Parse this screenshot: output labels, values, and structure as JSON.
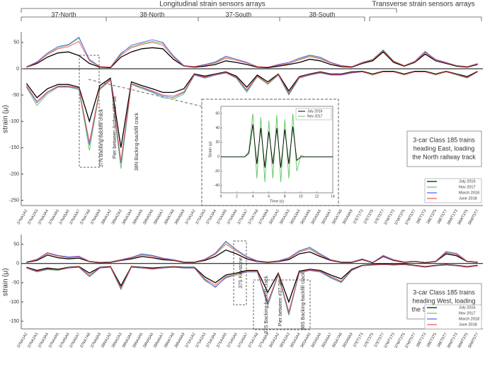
{
  "headers": {
    "longitudinal": "Longitudinal strain sensors arrays",
    "transverse": "Transverse strain sensors arrays",
    "groups": [
      "37-North",
      "38-North",
      "37-South",
      "38-South"
    ]
  },
  "chart_data": [
    {
      "type": "line",
      "ylabel": "strain (μ)",
      "ylim": [
        -260,
        70
      ],
      "yticks": [
        50,
        0,
        -50,
        -100,
        -150,
        -200,
        -250
      ],
      "categories": [
        "37NA1A2",
        "37NA2A3",
        "37NA3A4",
        "37NA4A5",
        "37NA5A6",
        "37NA6A7",
        "37NA7A8",
        "37NA8A9",
        "38NA1A2",
        "38NA2A3",
        "38NA3A4",
        "38NA4A5",
        "38NA5A6",
        "38NA6A7",
        "38NA7A8",
        "38NA8A9",
        "37SA1A2",
        "37SA2A3",
        "37SA3A4",
        "37SA4A5",
        "37SA5A6",
        "37SA6A7",
        "37SA7A8",
        "37SA8A9",
        "38SA1A2",
        "38SA2A3",
        "38SA3A4",
        "38SA4A5",
        "38SA5A6",
        "38SA6A7",
        "38SA7A8",
        "38SA8A9",
        "37ET1T3",
        "37ET3T5",
        "37ET5T7",
        "37WT1T3",
        "37WT3T5",
        "37WT5T7",
        "38ET1T3",
        "38ET3T5",
        "38ET5T7",
        "38WT1T3",
        "38WT3T5",
        "38WT5T7"
      ],
      "series": [
        {
          "name": "July 2016",
          "color": "#000000",
          "max": [
            3,
            10,
            22,
            30,
            32,
            25,
            10,
            3,
            2,
            22,
            32,
            38,
            40,
            38,
            18,
            5,
            3,
            5,
            8,
            15,
            12,
            8,
            3,
            2,
            5,
            8,
            12,
            18,
            15,
            8,
            4,
            3,
            10,
            15,
            32,
            12,
            5,
            12,
            28,
            15,
            10,
            5,
            3,
            8
          ],
          "min": [
            -28,
            -55,
            -38,
            -30,
            -30,
            -35,
            -100,
            -32,
            -18,
            -150,
            -25,
            -32,
            -38,
            -45,
            -45,
            -38,
            -10,
            -14,
            -10,
            -6,
            -14,
            -35,
            -12,
            -25,
            -10,
            -42,
            -15,
            -10,
            -6,
            -10,
            -10,
            -6,
            -5,
            -10,
            -5,
            -5,
            -10,
            -5,
            -5,
            -10,
            -5,
            -10,
            -15,
            -5
          ]
        },
        {
          "name": "Nov 2017",
          "color": "#5cc85c",
          "max": [
            4,
            12,
            28,
            40,
            45,
            58,
            18,
            4,
            3,
            30,
            42,
            48,
            52,
            48,
            25,
            6,
            4,
            7,
            12,
            22,
            18,
            12,
            4,
            3,
            7,
            10,
            18,
            25,
            20,
            12,
            6,
            4,
            12,
            18,
            36,
            15,
            6,
            14,
            32,
            18,
            12,
            6,
            4,
            10
          ],
          "min": [
            -35,
            -70,
            -48,
            -35,
            -35,
            -40,
            -155,
            -40,
            -22,
            -190,
            -30,
            -38,
            -45,
            -55,
            -58,
            -48,
            -12,
            -18,
            -12,
            -8,
            -18,
            -45,
            -15,
            -30,
            -12,
            -50,
            -18,
            -12,
            -8,
            -12,
            -12,
            -8,
            -6,
            -12,
            -6,
            -6,
            -12,
            -6,
            -6,
            -12,
            -6,
            -12,
            -18,
            -6
          ]
        },
        {
          "name": "March 2018",
          "color": "#5a5af0",
          "max": [
            4,
            13,
            30,
            42,
            46,
            60,
            17,
            4,
            3,
            28,
            45,
            50,
            55,
            50,
            24,
            6,
            4,
            8,
            13,
            24,
            18,
            12,
            4,
            3,
            8,
            12,
            20,
            26,
            22,
            12,
            6,
            4,
            12,
            17,
            35,
            14,
            6,
            14,
            33,
            17,
            12,
            6,
            4,
            10
          ],
          "min": [
            -33,
            -65,
            -45,
            -34,
            -34,
            -38,
            -145,
            -38,
            -21,
            -180,
            -29,
            -36,
            -44,
            -52,
            -55,
            -45,
            -12,
            -17,
            -12,
            -8,
            -17,
            -42,
            -14,
            -28,
            -12,
            -48,
            -17,
            -12,
            -8,
            -12,
            -12,
            -8,
            -6,
            -11,
            -6,
            -6,
            -11,
            -6,
            -6,
            -11,
            -6,
            -11,
            -17,
            -6
          ]
        },
        {
          "name": "June 2018",
          "color": "#f05050",
          "max": [
            3,
            12,
            27,
            38,
            42,
            52,
            15,
            4,
            3,
            26,
            40,
            46,
            50,
            45,
            22,
            5,
            4,
            7,
            11,
            20,
            16,
            11,
            4,
            3,
            7,
            10,
            17,
            23,
            19,
            11,
            5,
            4,
            11,
            17,
            34,
            14,
            6,
            13,
            31,
            16,
            11,
            6,
            4,
            9
          ],
          "min": [
            -32,
            -62,
            -44,
            -33,
            -33,
            -37,
            -140,
            -37,
            -20,
            -175,
            -28,
            -35,
            -42,
            -50,
            -52,
            -44,
            -11,
            -16,
            -11,
            -7,
            -16,
            -40,
            -14,
            -28,
            -11,
            -46,
            -16,
            -11,
            -7,
            -11,
            -11,
            -7,
            -6,
            -11,
            -6,
            -6,
            -11,
            -6,
            -6,
            -11,
            -6,
            -11,
            -17,
            -6
          ]
        }
      ],
      "annotations": [
        "37N Backing-backfill crack",
        "Pier between Arches #37-38",
        "38N Backing-backfill crack"
      ],
      "box_text": [
        "3-car Class 185 trains",
        "heading East, loading",
        "the North railway track"
      ]
    },
    {
      "type": "line",
      "ylabel": "strain (μ)",
      "ylim": [
        -170,
        75
      ],
      "yticks": [
        50,
        0,
        -50,
        -100,
        -150
      ],
      "categories": [
        "37NA1A2",
        "37NA2A3",
        "37NA3A4",
        "37NA4A5",
        "37NA5A6",
        "37NA6A7",
        "37NA7A8",
        "37NA8A9",
        "38NA1A2",
        "38NA2A3",
        "38NA3A4",
        "38NA4A5",
        "38NA5A6",
        "38NA6A7",
        "38NA7A8",
        "38NA8A9",
        "37SA1A2",
        "37SA2A3",
        "37SA3A4",
        "37SA4A5",
        "37SA5A6",
        "37SA6A7",
        "37SA7A8",
        "37SA8A9",
        "38SA1A2",
        "38SA2A3",
        "38SA3A4",
        "38SA4A5",
        "38SA5A6",
        "38SA6A7",
        "38SA7A8",
        "38SA8A9",
        "37ET1T3",
        "37ET3T5",
        "37ET5T7",
        "37WT1T3",
        "37WT3T5",
        "37WT5T7",
        "38ET1T3",
        "38ET3T5",
        "38ET5T7",
        "38WT1T3",
        "38WT3T5",
        "38WT5T7"
      ],
      "series": [
        {
          "name": "July 2016",
          "color": "#000000",
          "max": [
            3,
            8,
            22,
            15,
            12,
            14,
            5,
            2,
            3,
            8,
            12,
            18,
            15,
            10,
            8,
            3,
            3,
            8,
            18,
            35,
            25,
            12,
            5,
            3,
            5,
            10,
            25,
            30,
            18,
            8,
            3,
            3,
            10,
            2,
            18,
            8,
            3,
            5,
            2,
            5,
            25,
            20,
            5,
            3
          ],
          "min": [
            -10,
            -18,
            -12,
            -15,
            -10,
            -8,
            -25,
            -10,
            -8,
            -58,
            -8,
            -10,
            -12,
            -10,
            -8,
            -10,
            -10,
            -35,
            -50,
            -30,
            -25,
            -18,
            -18,
            -75,
            -25,
            -100,
            -20,
            -15,
            -18,
            -30,
            -40,
            -15,
            -5,
            -3,
            -2,
            -3,
            -2,
            -5,
            -8,
            -5,
            -3,
            -5,
            -8,
            -5
          ]
        },
        {
          "name": "Nov 2017",
          "color": "#5cc85c",
          "max": [
            4,
            10,
            28,
            20,
            16,
            18,
            6,
            3,
            4,
            10,
            15,
            24,
            20,
            13,
            10,
            4,
            4,
            10,
            25,
            55,
            35,
            18,
            7,
            4,
            7,
            14,
            32,
            40,
            24,
            10,
            4,
            4,
            12,
            3,
            20,
            10,
            4,
            6,
            3,
            6,
            30,
            25,
            6,
            4
          ],
          "min": [
            -12,
            -22,
            -16,
            -18,
            -12,
            -10,
            -35,
            -12,
            -10,
            -68,
            -10,
            -12,
            -15,
            -12,
            -10,
            -12,
            -12,
            -45,
            -60,
            -38,
            -30,
            -22,
            -22,
            -110,
            -30,
            -135,
            -25,
            -18,
            -22,
            -38,
            -50,
            -18,
            -6,
            -4,
            -3,
            -4,
            -3,
            -6,
            -10,
            -6,
            -4,
            -6,
            -10,
            -6
          ]
        },
        {
          "name": "March 2018",
          "color": "#5a5af0",
          "max": [
            4,
            11,
            28,
            21,
            17,
            19,
            6,
            3,
            4,
            10,
            16,
            25,
            21,
            14,
            10,
            4,
            4,
            11,
            27,
            58,
            36,
            18,
            7,
            4,
            7,
            15,
            33,
            42,
            25,
            10,
            4,
            4,
            12,
            3,
            21,
            10,
            4,
            6,
            3,
            6,
            31,
            26,
            6,
            4
          ],
          "min": [
            -12,
            -21,
            -15,
            -17,
            -12,
            -10,
            -33,
            -12,
            -10,
            -65,
            -10,
            -12,
            -14,
            -12,
            -10,
            -12,
            -12,
            -42,
            -62,
            -36,
            -28,
            -22,
            -22,
            -105,
            -28,
            -130,
            -24,
            -18,
            -22,
            -36,
            -48,
            -18,
            -6,
            -4,
            -3,
            -4,
            -3,
            -6,
            -10,
            -6,
            -4,
            -6,
            -10,
            -6
          ]
        },
        {
          "name": "June 2018",
          "color": "#f05050",
          "max": [
            4,
            10,
            26,
            19,
            15,
            17,
            6,
            3,
            4,
            9,
            14,
            22,
            19,
            12,
            9,
            4,
            4,
            10,
            24,
            50,
            32,
            16,
            6,
            4,
            6,
            13,
            30,
            37,
            22,
            9,
            4,
            4,
            11,
            3,
            19,
            9,
            4,
            6,
            3,
            6,
            28,
            23,
            6,
            4
          ],
          "min": [
            -11,
            -20,
            -14,
            -17,
            -11,
            -9,
            -30,
            -11,
            -9,
            -63,
            -9,
            -11,
            -14,
            -11,
            -9,
            -11,
            -11,
            -40,
            -56,
            -34,
            -28,
            -20,
            -20,
            -100,
            -27,
            -125,
            -23,
            -17,
            -20,
            -34,
            -46,
            -17,
            -6,
            -4,
            -3,
            -4,
            -3,
            -6,
            -9,
            -6,
            -4,
            -6,
            -9,
            -6
          ]
        }
      ],
      "annotations": [
        "37S Keystone",
        "37S Backing-backfill crack",
        "Pier between #37-38",
        "38S Backing-backfill crack"
      ],
      "box_text": [
        "3-car Class 185 trains",
        "heading West, loading",
        "the South railway track"
      ]
    },
    {
      "type": "line",
      "xlabel": "Time (s)",
      "ylabel": "Strain (μ)",
      "xlim": [
        0,
        14
      ],
      "xticks": [
        0,
        2,
        4,
        6,
        8,
        10,
        12,
        14
      ],
      "ylim": [
        -50,
        70
      ],
      "yticks": [
        -40,
        -20,
        0,
        20,
        40,
        60
      ],
      "x": [
        0,
        0.5,
        1,
        1.5,
        2,
        2.5,
        3,
        3.5,
        4,
        4.5,
        5,
        5.5,
        6,
        6.5,
        7,
        7.5,
        8,
        8.5,
        9,
        9.5,
        10,
        10.5,
        11,
        11.5,
        12,
        12.5,
        13,
        13.5,
        14
      ],
      "series": [
        {
          "name": "July 2016",
          "color": "#000000",
          "values": [
            0,
            0,
            0,
            0,
            0,
            0,
            0,
            5,
            45,
            -10,
            40,
            -15,
            35,
            -10,
            40,
            -15,
            38,
            -10,
            42,
            -5,
            0,
            0,
            0,
            0,
            0,
            0,
            0,
            0,
            0
          ]
        },
        {
          "name": "Nov 2017",
          "color": "#5cc85c",
          "values": [
            0,
            0,
            0,
            0,
            0,
            0,
            0,
            8,
            60,
            -30,
            55,
            -35,
            50,
            -30,
            58,
            -35,
            52,
            -30,
            60,
            -20,
            2,
            0,
            0,
            0,
            0,
            0,
            0,
            0,
            0
          ]
        }
      ]
    }
  ]
}
